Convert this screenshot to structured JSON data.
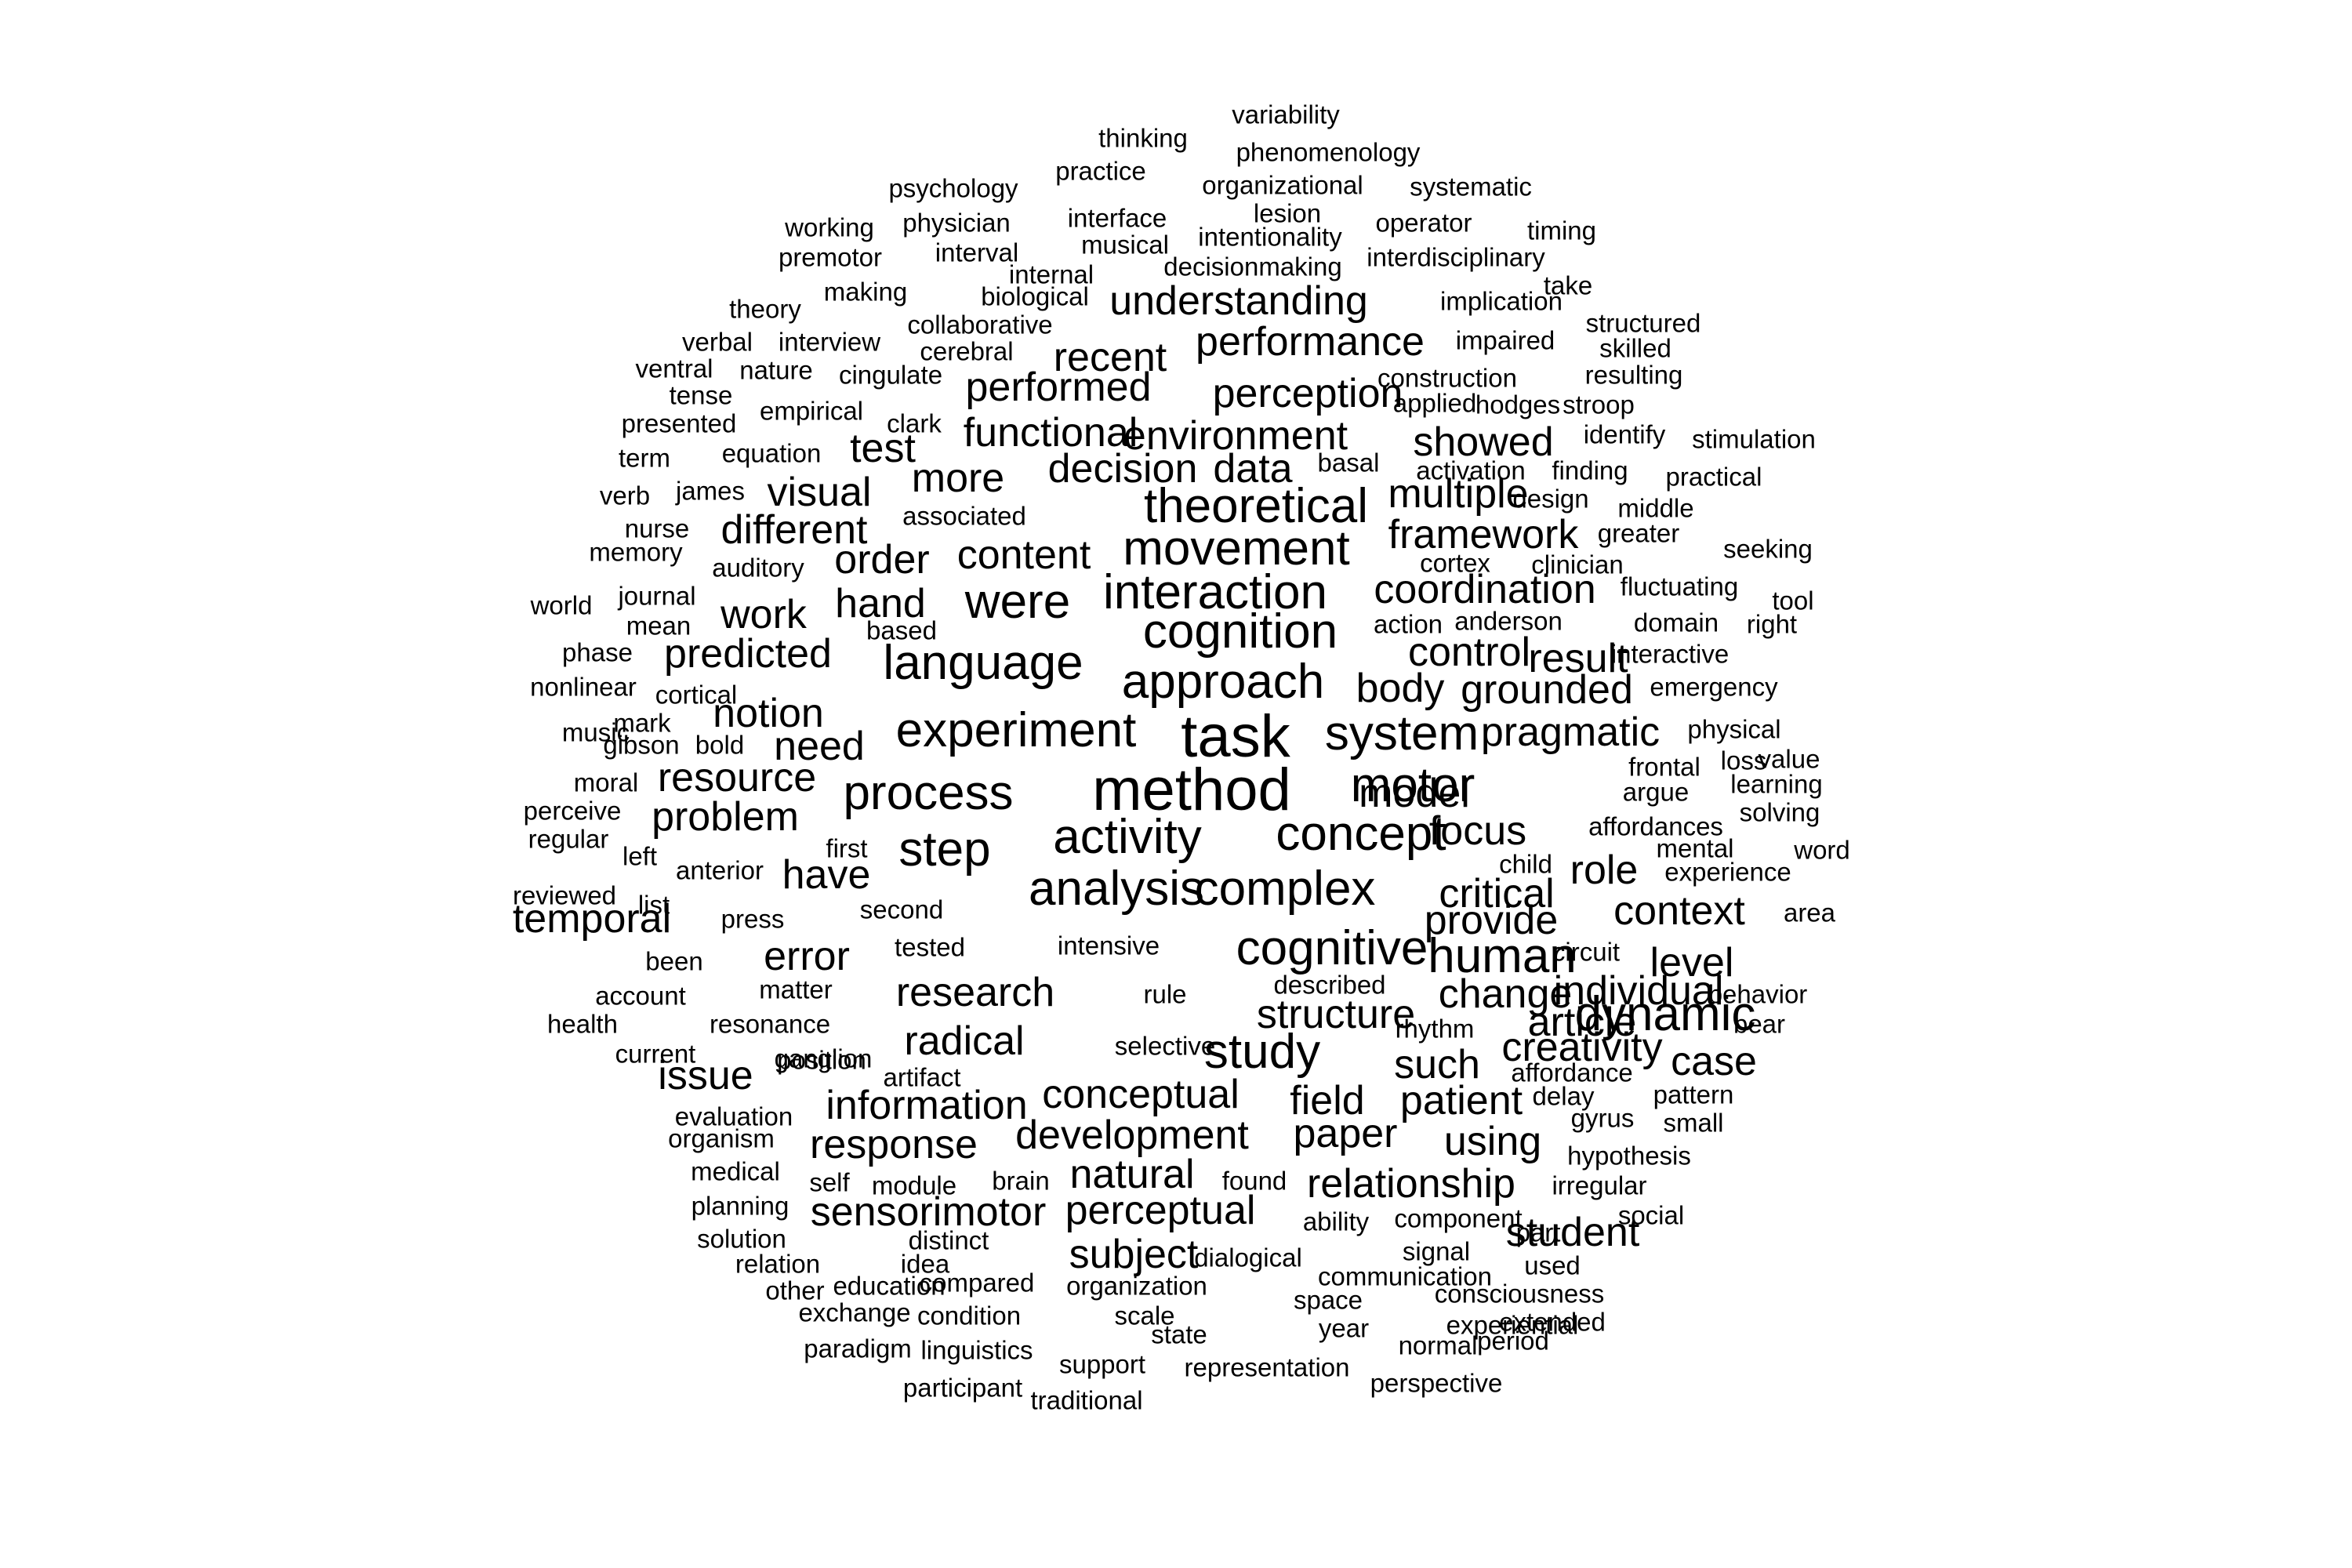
{
  "background_color": "#ffffff",
  "text_color": "#000000",
  "words": [
    {
      "text": "variability",
      "size": 1
    },
    {
      "text": "thinking",
      "size": 1
    },
    {
      "text": "phenomenology",
      "size": 1
    },
    {
      "text": "practice",
      "size": 1
    },
    {
      "text": "psychology",
      "size": 1
    },
    {
      "text": "organizational",
      "size": 1
    },
    {
      "text": "systematic",
      "size": 1
    },
    {
      "text": "lesion",
      "size": 1
    },
    {
      "text": "interface",
      "size": 1
    },
    {
      "text": "working",
      "size": 1
    },
    {
      "text": "physician",
      "size": 1
    },
    {
      "text": "intentionality",
      "size": 1
    },
    {
      "text": "operator",
      "size": 1
    },
    {
      "text": "timing",
      "size": 1
    },
    {
      "text": "musical",
      "size": 1
    },
    {
      "text": "premotor",
      "size": 1
    },
    {
      "text": "interval",
      "size": 1
    },
    {
      "text": "interdisciplinary",
      "size": 1
    },
    {
      "text": "decisionmaking",
      "size": 1
    },
    {
      "text": "internal",
      "size": 1
    },
    {
      "text": "take",
      "size": 1
    },
    {
      "text": "making",
      "size": 1
    },
    {
      "text": "biological",
      "size": 1
    },
    {
      "text": "understanding",
      "size": 3
    },
    {
      "text": "implication",
      "size": 1
    },
    {
      "text": "theory",
      "size": 1
    },
    {
      "text": "structured",
      "size": 1
    },
    {
      "text": "collaborative",
      "size": 1
    },
    {
      "text": "performance",
      "size": 3
    },
    {
      "text": "impaired",
      "size": 1
    },
    {
      "text": "verbal",
      "size": 1
    },
    {
      "text": "interview",
      "size": 1
    },
    {
      "text": "skilled",
      "size": 1
    },
    {
      "text": "cerebral",
      "size": 1
    },
    {
      "text": "recent",
      "size": 3
    },
    {
      "text": "ventral",
      "size": 1
    },
    {
      "text": "nature",
      "size": 1
    },
    {
      "text": "cingulate",
      "size": 1
    },
    {
      "text": "construction",
      "size": 1
    },
    {
      "text": "resulting",
      "size": 1
    },
    {
      "text": "performed",
      "size": 3
    },
    {
      "text": "perception",
      "size": 3
    },
    {
      "text": "tense",
      "size": 1
    },
    {
      "text": "applied",
      "size": 1
    },
    {
      "text": "hodges",
      "size": 1
    },
    {
      "text": "stroop",
      "size": 1
    },
    {
      "text": "empirical",
      "size": 1
    },
    {
      "text": "presented",
      "size": 1
    },
    {
      "text": "clark",
      "size": 1
    },
    {
      "text": "functional",
      "size": 3
    },
    {
      "text": "environment",
      "size": 3
    },
    {
      "text": "identify",
      "size": 1
    },
    {
      "text": "test",
      "size": 3
    },
    {
      "text": "showed",
      "size": 3
    },
    {
      "text": "stimulation",
      "size": 1
    },
    {
      "text": "equation",
      "size": 1
    },
    {
      "text": "term",
      "size": 1
    },
    {
      "text": "basal",
      "size": 1
    },
    {
      "text": "decision",
      "size": 3
    },
    {
      "text": "data",
      "size": 3
    },
    {
      "text": "activation",
      "size": 1
    },
    {
      "text": "finding",
      "size": 1
    },
    {
      "text": "practical",
      "size": 1
    },
    {
      "text": "more",
      "size": 3
    },
    {
      "text": "james",
      "size": 1
    },
    {
      "text": "verb",
      "size": 1
    },
    {
      "text": "visual",
      "size": 3
    },
    {
      "text": "theoretical",
      "size": 4
    },
    {
      "text": "multiple",
      "size": 3
    },
    {
      "text": "design",
      "size": 1
    },
    {
      "text": "middle",
      "size": 1
    },
    {
      "text": "nurse",
      "size": 1
    },
    {
      "text": "different",
      "size": 3
    },
    {
      "text": "associated",
      "size": 1
    },
    {
      "text": "framework",
      "size": 3
    },
    {
      "text": "greater",
      "size": 1
    },
    {
      "text": "memory",
      "size": 1
    },
    {
      "text": "content",
      "size": 3
    },
    {
      "text": "movement",
      "size": 4
    },
    {
      "text": "seeking",
      "size": 1
    },
    {
      "text": "order",
      "size": 3
    },
    {
      "text": "auditory",
      "size": 1
    },
    {
      "text": "cortex",
      "size": 1
    },
    {
      "text": "clinician",
      "size": 1
    },
    {
      "text": "fluctuating",
      "size": 1
    },
    {
      "text": "journal",
      "size": 1
    },
    {
      "text": "coordination",
      "size": 3
    },
    {
      "text": "world",
      "size": 1
    },
    {
      "text": "hand",
      "size": 3
    },
    {
      "text": "were",
      "size": 4
    },
    {
      "text": "interaction",
      "size": 4
    },
    {
      "text": "tool",
      "size": 1
    },
    {
      "text": "work",
      "size": 3
    },
    {
      "text": "mean",
      "size": 1
    },
    {
      "text": "based",
      "size": 1
    },
    {
      "text": "action",
      "size": 1
    },
    {
      "text": "anderson",
      "size": 1
    },
    {
      "text": "domain",
      "size": 1
    },
    {
      "text": "right",
      "size": 1
    },
    {
      "text": "cognition",
      "size": 4
    },
    {
      "text": "phase",
      "size": 1
    },
    {
      "text": "predicted",
      "size": 3
    },
    {
      "text": "control",
      "size": 3
    },
    {
      "text": "result",
      "size": 3
    },
    {
      "text": "interactive",
      "size": 1
    },
    {
      "text": "language",
      "size": 4
    },
    {
      "text": "nonlinear",
      "size": 1
    },
    {
      "text": "approach",
      "size": 4
    },
    {
      "text": "body",
      "size": 3
    },
    {
      "text": "grounded",
      "size": 3
    },
    {
      "text": "emergency",
      "size": 1
    },
    {
      "text": "cortical",
      "size": 1
    },
    {
      "text": "notion",
      "size": 3
    },
    {
      "text": "mark",
      "size": 1
    },
    {
      "text": "music",
      "size": 1
    },
    {
      "text": "task",
      "size": 5
    },
    {
      "text": "experiment",
      "size": 4
    },
    {
      "text": "system",
      "size": 4
    },
    {
      "text": "pragmatic",
      "size": 3
    },
    {
      "text": "physical",
      "size": 1
    },
    {
      "text": "gibson",
      "size": 1
    },
    {
      "text": "bold",
      "size": 1
    },
    {
      "text": "need",
      "size": 3
    },
    {
      "text": "loss",
      "size": 1
    },
    {
      "text": "value",
      "size": 1
    },
    {
      "text": "frontal",
      "size": 1
    },
    {
      "text": "resource",
      "size": 3
    },
    {
      "text": "moral",
      "size": 1
    },
    {
      "text": "method",
      "size": 5
    },
    {
      "text": "model",
      "size": 3
    },
    {
      "text": "argue",
      "size": 1
    },
    {
      "text": "learning",
      "size": 1
    },
    {
      "text": "process",
      "size": 4
    },
    {
      "text": "motor",
      "size": 4
    },
    {
      "text": "perceive",
      "size": 1
    },
    {
      "text": "problem",
      "size": 3
    },
    {
      "text": "solving",
      "size": 1
    },
    {
      "text": "focus",
      "size": 3
    },
    {
      "text": "affordances",
      "size": 1
    },
    {
      "text": "regular",
      "size": 1
    },
    {
      "text": "activity",
      "size": 4
    },
    {
      "text": "concept",
      "size": 4
    },
    {
      "text": "mental",
      "size": 1
    },
    {
      "text": "first",
      "size": 1
    },
    {
      "text": "step",
      "size": 4
    },
    {
      "text": "word",
      "size": 1
    },
    {
      "text": "left",
      "size": 1
    },
    {
      "text": "child",
      "size": 1
    },
    {
      "text": "anterior",
      "size": 1
    },
    {
      "text": "role",
      "size": 3
    },
    {
      "text": "experience",
      "size": 1
    },
    {
      "text": "have",
      "size": 3
    },
    {
      "text": "reviewed",
      "size": 1
    },
    {
      "text": "analysis",
      "size": 4
    },
    {
      "text": "complex",
      "size": 4
    },
    {
      "text": "critical",
      "size": 3
    },
    {
      "text": "list",
      "size": 1
    },
    {
      "text": "second",
      "size": 1
    },
    {
      "text": "context",
      "size": 3
    },
    {
      "text": "temporal",
      "size": 3
    },
    {
      "text": "press",
      "size": 1
    },
    {
      "text": "provide",
      "size": 3
    },
    {
      "text": "area",
      "size": 1
    },
    {
      "text": "tested",
      "size": 1
    },
    {
      "text": "error",
      "size": 3
    },
    {
      "text": "circuit",
      "size": 1
    },
    {
      "text": "been",
      "size": 1
    },
    {
      "text": "intensive",
      "size": 1
    },
    {
      "text": "cognitive",
      "size": 4
    },
    {
      "text": "human",
      "size": 4
    },
    {
      "text": "level",
      "size": 3
    },
    {
      "text": "described",
      "size": 1
    },
    {
      "text": "account",
      "size": 1
    },
    {
      "text": "matter",
      "size": 1
    },
    {
      "text": "research",
      "size": 3
    },
    {
      "text": "change",
      "size": 3
    },
    {
      "text": "individual",
      "size": 3
    },
    {
      "text": "behavior",
      "size": 1
    },
    {
      "text": "rule",
      "size": 1
    },
    {
      "text": "dynamic",
      "size": 4
    },
    {
      "text": "health",
      "size": 1
    },
    {
      "text": "resonance",
      "size": 1
    },
    {
      "text": "structure",
      "size": 3
    },
    {
      "text": "article",
      "size": 3
    },
    {
      "text": "bear",
      "size": 1
    },
    {
      "text": "rhythm",
      "size": 1
    },
    {
      "text": "radical",
      "size": 3
    },
    {
      "text": "creativity",
      "size": 3
    },
    {
      "text": "current",
      "size": 1
    },
    {
      "text": "selective",
      "size": 1
    },
    {
      "text": "study",
      "size": 4
    },
    {
      "text": "case",
      "size": 3
    },
    {
      "text": "position",
      "size": 1
    },
    {
      "text": "such",
      "size": 3
    },
    {
      "text": "issue",
      "size": 3
    },
    {
      "text": "ganglion",
      "size": 1
    },
    {
      "text": "affordance",
      "size": 1
    },
    {
      "text": "artifact",
      "size": 1
    },
    {
      "text": "conceptual",
      "size": 3
    },
    {
      "text": "field",
      "size": 3
    },
    {
      "text": "patient",
      "size": 3
    },
    {
      "text": "delay",
      "size": 1
    },
    {
      "text": "pattern",
      "size": 1
    },
    {
      "text": "information",
      "size": 3
    },
    {
      "text": "evaluation",
      "size": 1
    },
    {
      "text": "gyrus",
      "size": 1
    },
    {
      "text": "small",
      "size": 1
    },
    {
      "text": "development",
      "size": 3
    },
    {
      "text": "paper",
      "size": 3
    },
    {
      "text": "organism",
      "size": 1
    },
    {
      "text": "response",
      "size": 3
    },
    {
      "text": "using",
      "size": 3
    },
    {
      "text": "hypothesis",
      "size": 1
    },
    {
      "text": "medical",
      "size": 1
    },
    {
      "text": "natural",
      "size": 3
    },
    {
      "text": "brain",
      "size": 1
    },
    {
      "text": "found",
      "size": 1
    },
    {
      "text": "relationship",
      "size": 3
    },
    {
      "text": "self",
      "size": 1
    },
    {
      "text": "module",
      "size": 1
    },
    {
      "text": "irregular",
      "size": 1
    },
    {
      "text": "planning",
      "size": 1
    },
    {
      "text": "sensorimotor",
      "size": 3
    },
    {
      "text": "perceptual",
      "size": 3
    },
    {
      "text": "ability",
      "size": 1
    },
    {
      "text": "component",
      "size": 1
    },
    {
      "text": "social",
      "size": 1
    },
    {
      "text": "solution",
      "size": 1
    },
    {
      "text": "distinct",
      "size": 1
    },
    {
      "text": "part",
      "size": 1
    },
    {
      "text": "student",
      "size": 3
    },
    {
      "text": "subject",
      "size": 3
    },
    {
      "text": "dialogical",
      "size": 1
    },
    {
      "text": "signal",
      "size": 1
    },
    {
      "text": "communication",
      "size": 1
    },
    {
      "text": "relation",
      "size": 1
    },
    {
      "text": "idea",
      "size": 1
    },
    {
      "text": "used",
      "size": 1
    },
    {
      "text": "other",
      "size": 1
    },
    {
      "text": "education",
      "size": 1
    },
    {
      "text": "compared",
      "size": 1
    },
    {
      "text": "organization",
      "size": 1
    },
    {
      "text": "consciousness",
      "size": 1
    },
    {
      "text": "space",
      "size": 1
    },
    {
      "text": "exchange",
      "size": 1
    },
    {
      "text": "condition",
      "size": 1
    },
    {
      "text": "scale",
      "size": 1
    },
    {
      "text": "extended",
      "size": 1
    },
    {
      "text": "experiential",
      "size": 1
    },
    {
      "text": "year",
      "size": 1
    },
    {
      "text": "state",
      "size": 1
    },
    {
      "text": "period",
      "size": 1
    },
    {
      "text": "paradigm",
      "size": 1
    },
    {
      "text": "linguistics",
      "size": 1
    },
    {
      "text": "normal",
      "size": 1
    },
    {
      "text": "support",
      "size": 1
    },
    {
      "text": "representation",
      "size": 1
    },
    {
      "text": "participant",
      "size": 1
    },
    {
      "text": "perspective",
      "size": 1
    },
    {
      "text": "traditional",
      "size": 1
    }
  ]
}
